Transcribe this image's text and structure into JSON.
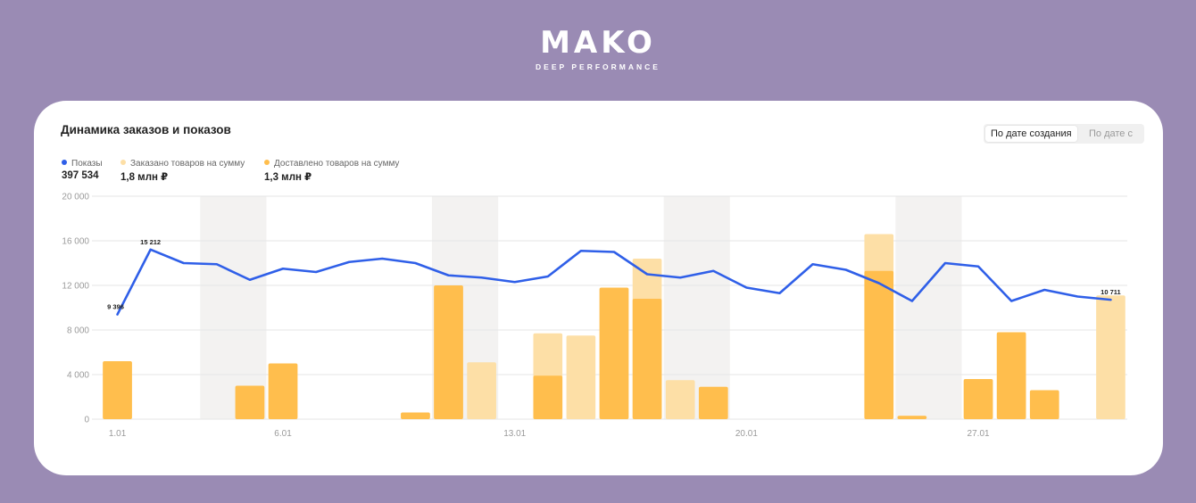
{
  "logo": {
    "name": "MAKO",
    "tagline": "DEEP PERFORMANCE"
  },
  "card": {
    "title": "Динамика заказов и показов"
  },
  "toggle": {
    "active": "По дате создания",
    "inactive": "По дате с"
  },
  "legend": [
    {
      "label": "Показы",
      "value": "397 534",
      "color": "#2f5fe8"
    },
    {
      "label": "Заказано товаров на сумму",
      "value": "1,8 млн ₽",
      "color": "#fddfa6"
    },
    {
      "label": "Доставлено товаров на сумму",
      "value": "1,3 млн ₽",
      "color": "#ffbe4d"
    }
  ],
  "chart_data": {
    "type": "bar",
    "ylim": [
      0,
      20000
    ],
    "yticks": [
      "0",
      "4 000",
      "8 000",
      "12 000",
      "16 000",
      "20 000"
    ],
    "grid": true,
    "days": 31,
    "xtick_labels": [
      {
        "day": 1,
        "label": "1.01"
      },
      {
        "day": 6,
        "label": "6.01"
      },
      {
        "day": 13,
        "label": "13.01"
      },
      {
        "day": 20,
        "label": "20.01"
      },
      {
        "day": 27,
        "label": "27.01"
      }
    ],
    "weekend_bands": [
      [
        4,
        5
      ],
      [
        11,
        12
      ],
      [
        18,
        19
      ],
      [
        25,
        26
      ]
    ],
    "series": [
      {
        "name": "Показы",
        "type": "line",
        "values": [
          9396,
          15212,
          14000,
          13900,
          12500,
          13500,
          13200,
          14100,
          14400,
          14000,
          12900,
          12700,
          12300,
          12800,
          15100,
          15000,
          13000,
          12700,
          13300,
          11800,
          11300,
          13900,
          13400,
          12200,
          10600,
          14000,
          13700,
          10600,
          11600,
          11000,
          10711
        ]
      },
      {
        "name": "Заказано товаров на сумму",
        "type": "bar",
        "values": [
          5200,
          0,
          0,
          0,
          3000,
          5000,
          0,
          0,
          0,
          600,
          12000,
          5100,
          0,
          7700,
          7500,
          11800,
          14400,
          3500,
          2900,
          0,
          0,
          0,
          0,
          16600,
          300,
          0,
          3600,
          7800,
          2600,
          0,
          11100
        ]
      },
      {
        "name": "Доставлено товаров на сумму",
        "type": "bar",
        "values": [
          5200,
          0,
          0,
          0,
          3000,
          5000,
          0,
          0,
          0,
          600,
          12000,
          0,
          0,
          3900,
          0,
          11800,
          10800,
          0,
          2900,
          0,
          0,
          0,
          0,
          13300,
          300,
          0,
          3600,
          7800,
          2600,
          0,
          0
        ]
      }
    ],
    "annotations": [
      {
        "day": 1,
        "text": "9 396"
      },
      {
        "day": 2,
        "text": "15 212"
      },
      {
        "day": 31,
        "text": "10 711"
      }
    ]
  }
}
